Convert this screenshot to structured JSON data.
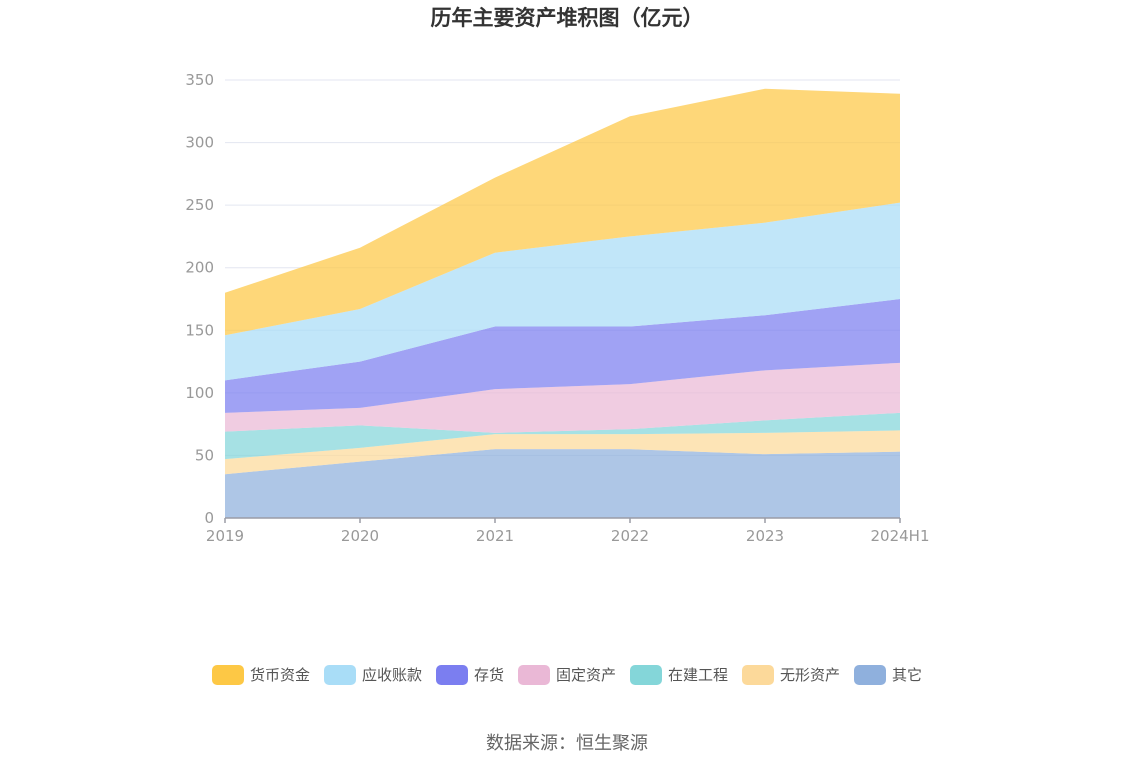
{
  "title": "历年主要资产堆积图（亿元）",
  "source": "数据来源：恒生聚源",
  "chart_data": {
    "type": "area",
    "stacked": true,
    "categories": [
      "2019",
      "2020",
      "2021",
      "2022",
      "2023",
      "2024H1"
    ],
    "ylim": [
      0,
      350
    ],
    "yticks": [
      0,
      50,
      100,
      150,
      200,
      250,
      300,
      350
    ],
    "grid": true,
    "legend_position": "bottom",
    "series": [
      {
        "name": "其它",
        "color": "#8fb0dd",
        "values": [
          35,
          45,
          55,
          55,
          51,
          53
        ]
      },
      {
        "name": "无形资产",
        "color": "#fcd99a",
        "values": [
          12,
          11,
          12,
          12,
          17,
          17
        ]
      },
      {
        "name": "在建工程",
        "color": "#84d6d9",
        "values": [
          22,
          18,
          1,
          4,
          10,
          14
        ]
      },
      {
        "name": "固定资产",
        "color": "#eab8d6",
        "values": [
          15,
          14,
          35,
          36,
          40,
          40
        ]
      },
      {
        "name": "存货",
        "color": "#7b7ef0",
        "values": [
          26,
          37,
          50,
          46,
          44,
          51
        ]
      },
      {
        "name": "应收账款",
        "color": "#a9ddf7",
        "values": [
          36,
          42,
          59,
          72,
          74,
          77
        ]
      },
      {
        "name": "货币资金",
        "color": "#fdc845",
        "values": [
          34,
          49,
          60,
          96,
          107,
          87
        ]
      }
    ],
    "legend_order": [
      "货币资金",
      "应收账款",
      "存货",
      "固定资产",
      "在建工程",
      "无形资产",
      "其它"
    ]
  }
}
